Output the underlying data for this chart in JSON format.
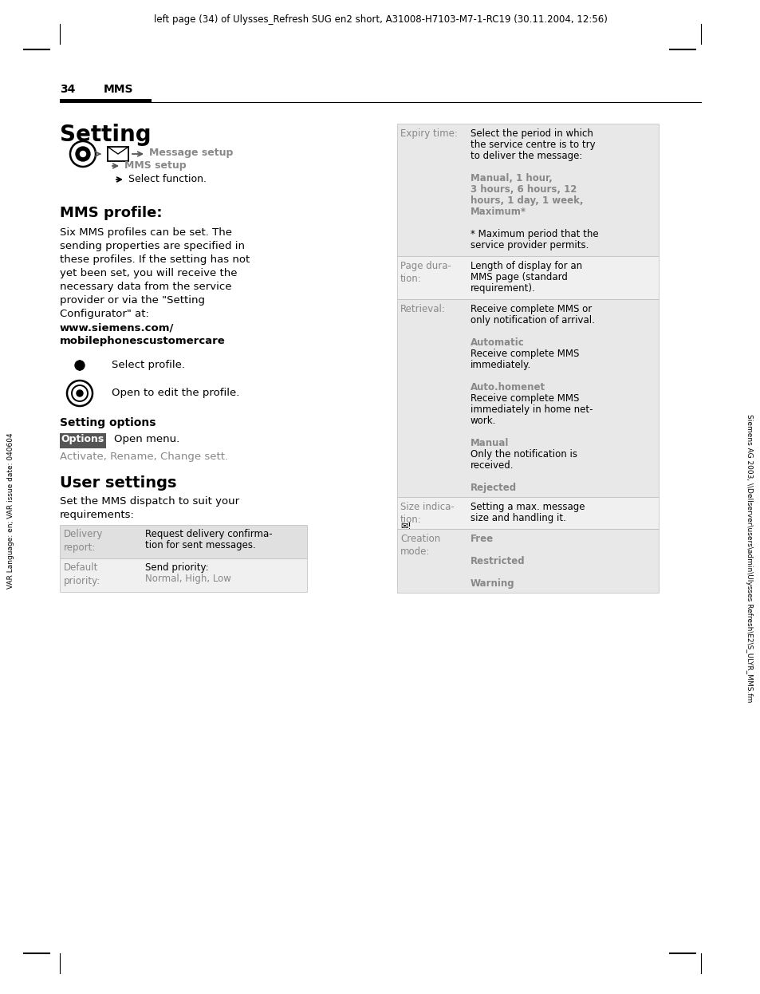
{
  "bg_color": "#ffffff",
  "header_text": "left page (34) of Ulysses_Refresh SUG en2 short, A31008-H7103-M7-1-RC19 (30.11.2004, 12:56)",
  "page_num": "34",
  "section": "MMS",
  "title": "Setting",
  "vertical_left_text": "VAR Language: en; VAR issue date: 040604",
  "vertical_right_text": "Siemens AG 2003, \\\\Dellserver\\users\\admin\\Ulysses Refresh\\E2\\S_ULYR_MMS.fm",
  "mms_profile_title": "MMS profile:",
  "profile_lines": [
    "Six MMS profiles can be set. The",
    "sending properties are specified in",
    "these profiles. If the setting has not",
    "yet been set, you will receive the",
    "necessary data from the service",
    "provider or via the \"Setting",
    "Configurator\" at:"
  ],
  "url_line1": "www.siemens.com/",
  "url_line2": "mobilephonescustomercare",
  "select_profile_text": "Select profile.",
  "open_profile_text": "Open to edit the profile.",
  "setting_options_title": "Setting options",
  "options_button": "Options",
  "open_menu_text": "Open menu.",
  "activate_rename_text": "Activate, Rename, Change sett.",
  "user_settings_title": "User settings",
  "user_settings_line1": "Set the MMS dispatch to suit your",
  "user_settings_line2": "requirements:"
}
